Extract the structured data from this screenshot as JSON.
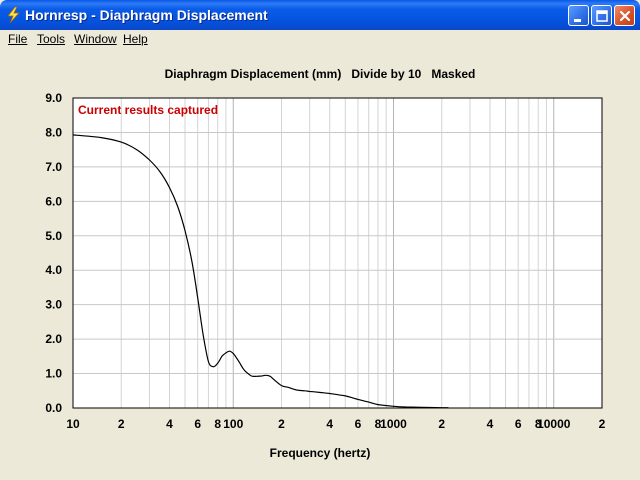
{
  "window": {
    "title": "Hornresp - Diaphragm Displacement",
    "icon": "lightning-bolt-icon"
  },
  "title_buttons": [
    "minimize-icon",
    "maximize-icon",
    "close-icon"
  ],
  "menu": [
    {
      "label": "File"
    },
    {
      "label": "Tools"
    },
    {
      "label": "Window"
    },
    {
      "label": "Help"
    }
  ],
  "status_note": "Current results captured",
  "colors": {
    "title_bar": "#0a5ce8",
    "note_text": "#cc0000",
    "plot_bg": "#ffffff",
    "grid": "#c8c8c8",
    "curve": "#000000",
    "window_bg": "#ece9d8"
  },
  "chart_data": {
    "type": "line",
    "title": "Diaphragm Displacement (mm)   Divide by 10   Masked",
    "xlabel": "Frequency (hertz)",
    "ylabel": "",
    "x_scale": "log",
    "xlim": [
      10,
      20000
    ],
    "ylim": [
      0,
      9
    ],
    "grid": true,
    "x_tick_labels": [
      {
        "value": 10,
        "label": "10"
      },
      {
        "value": 20,
        "label": "2"
      },
      {
        "value": 40,
        "label": "4"
      },
      {
        "value": 60,
        "label": "6"
      },
      {
        "value": 80,
        "label": "8"
      },
      {
        "value": 100,
        "label": "100"
      },
      {
        "value": 200,
        "label": "2"
      },
      {
        "value": 400,
        "label": "4"
      },
      {
        "value": 600,
        "label": "6"
      },
      {
        "value": 800,
        "label": "8"
      },
      {
        "value": 1000,
        "label": "1000"
      },
      {
        "value": 2000,
        "label": "2"
      },
      {
        "value": 4000,
        "label": "4"
      },
      {
        "value": 6000,
        "label": "6"
      },
      {
        "value": 8000,
        "label": "8"
      },
      {
        "value": 10000,
        "label": "10000"
      },
      {
        "value": 20000,
        "label": "2"
      }
    ],
    "y_tick_labels": [
      "0.0",
      "1.0",
      "2.0",
      "3.0",
      "4.0",
      "5.0",
      "6.0",
      "7.0",
      "8.0",
      "9.0"
    ],
    "series": [
      {
        "x": [
          10,
          15,
          20,
          25,
          30,
          35,
          40,
          45,
          50,
          55,
          60,
          65,
          70,
          75,
          80,
          85,
          90,
          95,
          100,
          105,
          110,
          115,
          120,
          130,
          140,
          150,
          160,
          170,
          180,
          200,
          220,
          250,
          280,
          300,
          320,
          350,
          400,
          500,
          600,
          700,
          800,
          1000,
          1200,
          1500,
          2000,
          2200
        ],
        "y": [
          7.93,
          7.85,
          7.72,
          7.5,
          7.2,
          6.85,
          6.4,
          5.85,
          5.15,
          4.3,
          3.2,
          2.1,
          1.35,
          1.2,
          1.3,
          1.5,
          1.6,
          1.65,
          1.58,
          1.45,
          1.3,
          1.15,
          1.05,
          0.93,
          0.92,
          0.93,
          0.95,
          0.92,
          0.82,
          0.65,
          0.6,
          0.52,
          0.5,
          0.48,
          0.47,
          0.45,
          0.42,
          0.35,
          0.25,
          0.17,
          0.1,
          0.05,
          0.03,
          0.02,
          0.01,
          0.01
        ]
      }
    ]
  }
}
